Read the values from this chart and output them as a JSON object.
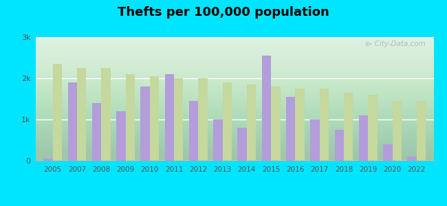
{
  "title": "Thefts per 100,000 population",
  "years": [
    2005,
    2007,
    2008,
    2009,
    2010,
    2011,
    2012,
    2013,
    2014,
    2015,
    2016,
    2017,
    2018,
    2019,
    2020,
    2022
  ],
  "west_homestead": [
    50,
    1900,
    1400,
    1200,
    1800,
    2100,
    1450,
    1000,
    800,
    2550,
    1550,
    1000,
    750,
    1100,
    400,
    100
  ],
  "us_average": [
    2350,
    2250,
    2250,
    2100,
    2050,
    2000,
    2000,
    1900,
    1850,
    1800,
    1750,
    1750,
    1650,
    1600,
    1450,
    1450
  ],
  "wh_color": "#b39ddb",
  "us_color": "#c5d89d",
  "background_outer": "#00e5ff",
  "background_plot_bottom": "#d4edda",
  "background_plot_top": "#f0faf0",
  "ylim": [
    0,
    3000
  ],
  "yticks": [
    0,
    1000,
    2000,
    3000
  ],
  "ytick_labels": [
    "0",
    "1k",
    "2k",
    "3k"
  ],
  "title_fontsize": 13,
  "bar_width": 0.38,
  "watermark": "City-Data.com"
}
